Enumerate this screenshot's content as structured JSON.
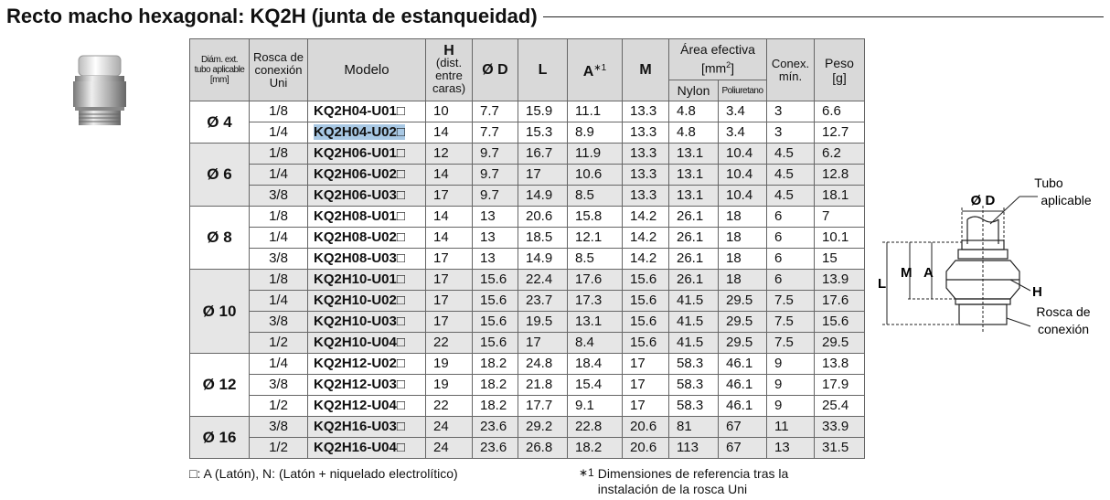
{
  "title": "Recto macho hexagonal: KQ2H (junta de estanqueidad)",
  "table": {
    "headers": {
      "tube": "Diám. ext.\ntubo aplicable\n[mm]",
      "thread": "Rosca de\nconexión\nUni",
      "model": "Modelo",
      "h": "H",
      "h_sub": "(dist.\nentre\ncaras)",
      "d": "Ø D",
      "l": "L",
      "a": "A",
      "a_note": "∗1",
      "m": "M",
      "area": "Área efectiva",
      "area_unit_open": "[mm",
      "area_unit_exp": "2",
      "area_unit_close": "]",
      "nylon": "Nylon",
      "poly": "Poliuretano",
      "conex": "Conex.\nmín.",
      "peso": "Peso\n[g]"
    },
    "groups": [
      {
        "diameter": "Ø 4",
        "rows": [
          [
            "1/8",
            "KQ2H04-U01□",
            "10",
            "7.7",
            "15.9",
            "11.1",
            "13.3",
            "4.8",
            "3.4",
            "3",
            "6.6"
          ],
          [
            "1/4",
            "KQ2H04-U02□",
            "14",
            "7.7",
            "15.3",
            "8.9",
            "13.3",
            "4.8",
            "3.4",
            "3",
            "12.7"
          ]
        ]
      },
      {
        "diameter": "Ø 6",
        "rows": [
          [
            "1/8",
            "KQ2H06-U01□",
            "12",
            "9.7",
            "16.7",
            "11.9",
            "13.3",
            "13.1",
            "10.4",
            "4.5",
            "6.2"
          ],
          [
            "1/4",
            "KQ2H06-U02□",
            "14",
            "9.7",
            "17",
            "10.6",
            "13.3",
            "13.1",
            "10.4",
            "4.5",
            "12.8"
          ],
          [
            "3/8",
            "KQ2H06-U03□",
            "17",
            "9.7",
            "14.9",
            "8.5",
            "13.3",
            "13.1",
            "10.4",
            "4.5",
            "18.1"
          ]
        ]
      },
      {
        "diameter": "Ø 8",
        "rows": [
          [
            "1/8",
            "KQ2H08-U01□",
            "14",
            "13",
            "20.6",
            "15.8",
            "14.2",
            "26.1",
            "18",
            "6",
            "7"
          ],
          [
            "1/4",
            "KQ2H08-U02□",
            "14",
            "13",
            "18.5",
            "12.1",
            "14.2",
            "26.1",
            "18",
            "6",
            "10.1"
          ],
          [
            "3/8",
            "KQ2H08-U03□",
            "17",
            "13",
            "14.9",
            "8.5",
            "14.2",
            "26.1",
            "18",
            "6",
            "15"
          ]
        ]
      },
      {
        "diameter": "Ø 10",
        "rows": [
          [
            "1/8",
            "KQ2H10-U01□",
            "17",
            "15.6",
            "22.4",
            "17.6",
            "15.6",
            "26.1",
            "18",
            "6",
            "13.9"
          ],
          [
            "1/4",
            "KQ2H10-U02□",
            "17",
            "15.6",
            "23.7",
            "17.3",
            "15.6",
            "41.5",
            "29.5",
            "7.5",
            "17.6"
          ],
          [
            "3/8",
            "KQ2H10-U03□",
            "17",
            "15.6",
            "19.5",
            "13.1",
            "15.6",
            "41.5",
            "29.5",
            "7.5",
            "15.6"
          ],
          [
            "1/2",
            "KQ2H10-U04□",
            "22",
            "15.6",
            "17",
            "8.4",
            "15.6",
            "41.5",
            "29.5",
            "7.5",
            "29.5"
          ]
        ]
      },
      {
        "diameter": "Ø 12",
        "rows": [
          [
            "1/4",
            "KQ2H12-U02□",
            "19",
            "18.2",
            "24.8",
            "18.4",
            "17",
            "58.3",
            "46.1",
            "9",
            "13.8"
          ],
          [
            "3/8",
            "KQ2H12-U03□",
            "19",
            "18.2",
            "21.8",
            "15.4",
            "17",
            "58.3",
            "46.1",
            "9",
            "17.9"
          ],
          [
            "1/2",
            "KQ2H12-U04□",
            "22",
            "18.2",
            "17.7",
            "9.1",
            "17",
            "58.3",
            "46.1",
            "9",
            "25.4"
          ]
        ]
      },
      {
        "diameter": "Ø 16",
        "rows": [
          [
            "3/8",
            "KQ2H16-U03□",
            "24",
            "23.6",
            "29.2",
            "22.8",
            "20.6",
            "81",
            "67",
            "11",
            "33.9"
          ],
          [
            "1/2",
            "KQ2H16-U04□",
            "24",
            "23.6",
            "26.8",
            "18.2",
            "20.6",
            "113",
            "67",
            "13",
            "31.5"
          ]
        ]
      }
    ]
  },
  "notes": {
    "material": "□: A (Latón), N: (Latón + niquelado electrolítico)",
    "ref_mark": "∗1",
    "ref": "Dimensiones de referencia tras la\ninstalación de la rosca Uni"
  },
  "diagram": {
    "tube_1": "Tubo",
    "tube_2": "aplicable",
    "d": "Ø D",
    "l": "L",
    "m": "M",
    "a": "A",
    "h": "H",
    "thread_1": "Rosca de",
    "thread_2": "conexión"
  }
}
